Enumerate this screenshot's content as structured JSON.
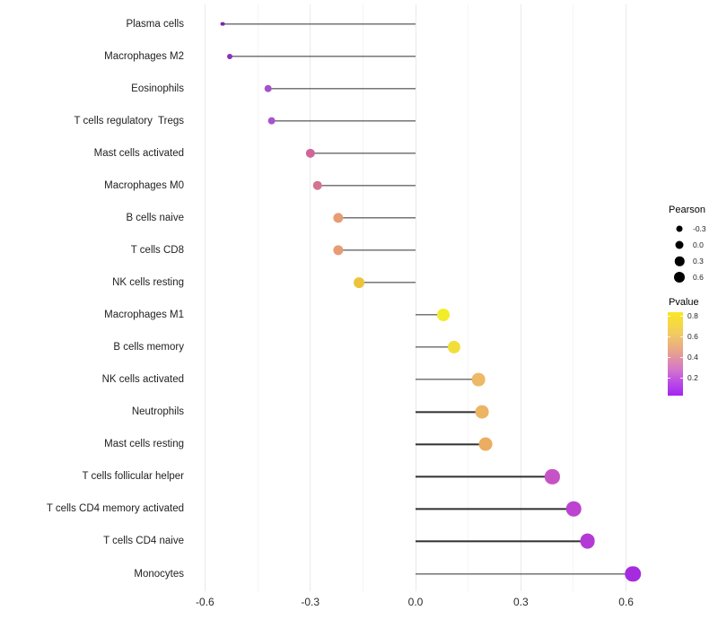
{
  "chart_data": {
    "type": "lollipop",
    "title": "",
    "xlabel": "",
    "ylabel": "",
    "x_tick_labels": [
      "-0.6",
      "-0.3",
      "0.0",
      "0.3",
      "0.6"
    ],
    "x_tick_values": [
      -0.6,
      -0.3,
      0.0,
      0.3,
      0.6
    ],
    "x_minor_tick_values": [
      -0.45,
      -0.15,
      0.15,
      0.45
    ],
    "xlim": [
      -0.65,
      0.69
    ],
    "grid": true,
    "stem_color": "#303030",
    "categories": [
      "Plasma cells",
      "Macrophages M2",
      "Eosinophils",
      "T cells regulatory  Tregs",
      "Mast cells activated",
      "Macrophages M0",
      "B cells naive",
      "T cells CD8",
      "NK cells resting",
      "Macrophages M1",
      "B cells memory",
      "NK cells activated",
      "Neutrophils",
      "Mast cells resting",
      "T cells follicular helper",
      "T cells CD4 memory activated",
      "T cells CD4 naive",
      "Monocytes"
    ],
    "series": [
      {
        "name": "Pearson",
        "values": [
          -0.55,
          -0.53,
          -0.42,
          -0.41,
          -0.3,
          -0.28,
          -0.22,
          -0.22,
          -0.16,
          0.08,
          0.11,
          0.18,
          0.19,
          0.2,
          0.39,
          0.45,
          0.49,
          0.62
        ]
      },
      {
        "name": "Pvalue (estimated from color)",
        "values": [
          0.1,
          0.13,
          0.22,
          0.23,
          0.4,
          0.43,
          0.52,
          0.52,
          0.66,
          0.8,
          0.76,
          0.62,
          0.61,
          0.59,
          0.28,
          0.24,
          0.21,
          0.12
        ]
      }
    ],
    "point_colors": [
      "#7a2ba1",
      "#8a33be",
      "#a452c8",
      "#a854cb",
      "#cf6699",
      "#d37390",
      "#e69c74",
      "#e69c74",
      "#edc33c",
      "#f3ec28",
      "#f2de3b",
      "#edb966",
      "#edb463",
      "#ebad62",
      "#c653c6",
      "#bc43d0",
      "#b43ad6",
      "#a62bde"
    ],
    "legend_size": {
      "title": "Pearson",
      "item_labels": [
        "-0.3",
        "0.0",
        "0.3",
        "0.6"
      ],
      "item_values": [
        -0.3,
        0.0,
        0.3,
        0.6
      ],
      "dot_color": "#000000"
    },
    "legend_color": {
      "title": "Pvalue",
      "tick_labels": [
        "0.8",
        "0.6",
        "0.4",
        "0.2"
      ],
      "tick_values": [
        0.8,
        0.6,
        0.4,
        0.2
      ],
      "gradient_top_to_bottom": [
        "#f9e721",
        "#f2cc60",
        "#e7a28e",
        "#d578c9",
        "#bb4ce6",
        "#a226f2"
      ],
      "bar_range_top_to_bottom": [
        0.85,
        0.05
      ]
    }
  }
}
